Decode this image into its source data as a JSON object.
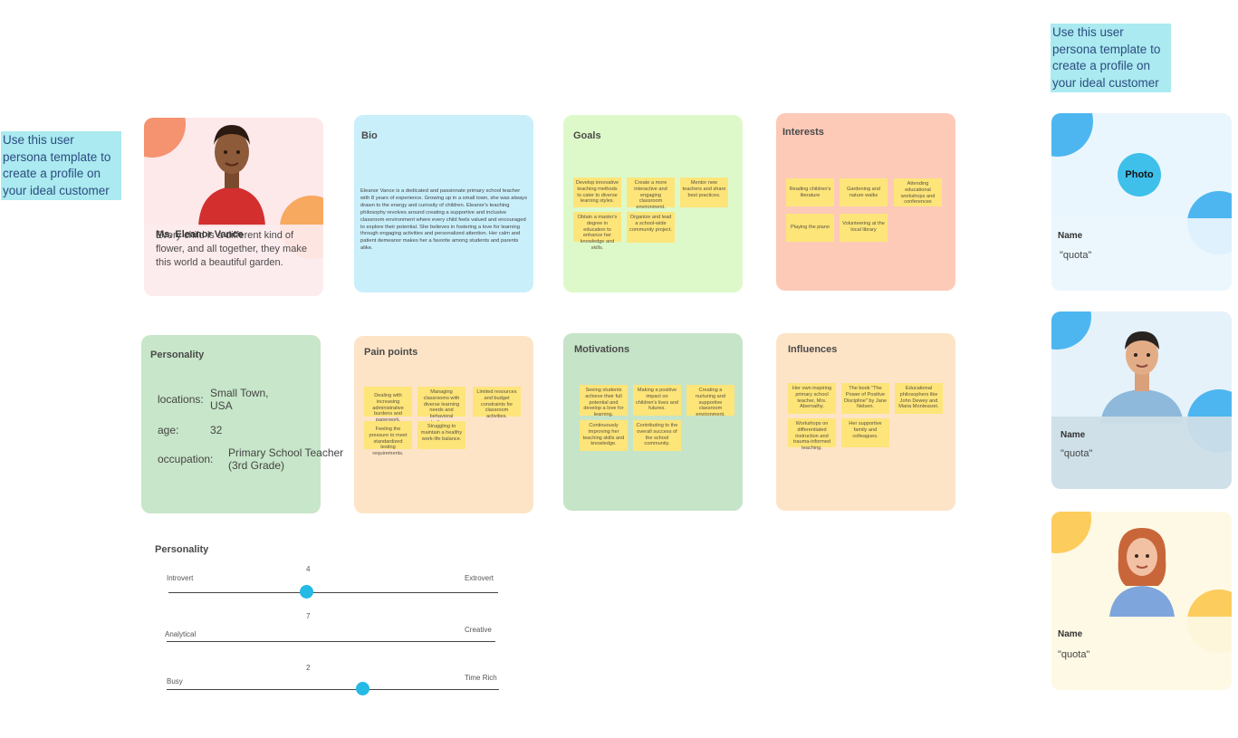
{
  "hint_text": "Use this user persona template to create a profile on your ideal customer",
  "hero": {
    "name": "Ms. Eleanor Vance",
    "quote": "Every child is a different kind of flower, and all together, they make this world a beautiful garden."
  },
  "bio": {
    "title": "Bio",
    "text": "Eleanor Vance is a dedicated and passionate primary school teacher with 8 years of experience. Growing up in a small town, she was always drawn to the energy and curiosity of children. Eleanor's teaching philosophy revolves around creating a supportive and inclusive classroom environment where every child feels valued and encouraged to explore their potential. She believes in fostering a love for learning through engaging activities and personalized attention. Her calm and patient demeanor makes her a favorite among students and parents alike."
  },
  "goals": {
    "title": "Goals",
    "items": [
      "Develop innovative teaching methods to cater to diverse learning styles.",
      "Create a more interactive and engaging classroom environment.",
      "Mentor new teachers and share best practices.",
      "Obtain a master's degree in education to enhance her knowledge and skills.",
      "Organize and lead a school-wide community project."
    ]
  },
  "interests": {
    "title": "Interests",
    "items": [
      "Reading children's literature",
      "Gardening and nature walks",
      "Attending educational workshops and conferences",
      "Playing the piano",
      "Volunteering at the local library"
    ]
  },
  "personality_card": {
    "title": "Personality",
    "rows": [
      {
        "label": "locations:",
        "value": "Small Town, USA"
      },
      {
        "label": "age:",
        "value": "32"
      },
      {
        "label": "occupation:",
        "value": "Primary School Teacher (3rd Grade)"
      }
    ]
  },
  "pain_points": {
    "title": "Pain points",
    "items": [
      "Dealing with increasing administrative burdens and paperwork.",
      "Managing classrooms with diverse learning needs and behavioral challenges.",
      "Limited resources and budget constraints for classroom activities.",
      "Feeling the pressure to meet standardized testing requirements.",
      "Struggling to maintain a healthy work-life balance."
    ]
  },
  "motivations": {
    "title": "Motivations",
    "items": [
      "Seeing students achieve their full potential and develop a love for learning.",
      "Making a positive impact on children's lives and futures.",
      "Creating a nurturing and supportive classroom environment.",
      "Continuously improving her teaching skills and knowledge.",
      "Contributing to the overall success of the school community."
    ]
  },
  "influences": {
    "title": "Influences",
    "items": [
      "Her own inspiring primary school teacher, Mrs. Abernathy.",
      "The book \"The Power of Positive Discipline\" by Jane Nelsen.",
      "Educational philosophers like John Dewey and Maria Montessori.",
      "Workshops on differentiated instruction and trauma-informed teaching.",
      "Her supportive family and colleagues."
    ]
  },
  "personality_scale": {
    "title": "Personality",
    "traits": [
      {
        "left": "Introvert",
        "right": "Extrovert",
        "value": "4",
        "level": 0.42
      },
      {
        "left": "Analytical",
        "right": "Creative",
        "value": "7",
        "level": null
      },
      {
        "left": "Busy",
        "right": "Time Rich",
        "value": "2",
        "level": 0.59
      }
    ]
  },
  "templates": [
    {
      "name": "Name",
      "quote": "\"quota\"",
      "photo_label": "Photo"
    },
    {
      "name": "Name",
      "quote": "\"quota\""
    },
    {
      "name": "Name",
      "quote": "\"quota\""
    }
  ],
  "colors": {
    "hero_bg": "#fde8ea",
    "bio_bg": "#c9effb",
    "goals_bg": "#ddf9c9",
    "interests_bg": "#fdcab8",
    "personality_bg": "#c8e6c9",
    "pain_bg": "#fde4c7",
    "motivations_bg": "#c6e4c8",
    "influences_bg": "#fde4c7",
    "sticky": "#fde57a",
    "accent_blue": "#25b9e6",
    "hint_bg": "#aaeaf0"
  }
}
